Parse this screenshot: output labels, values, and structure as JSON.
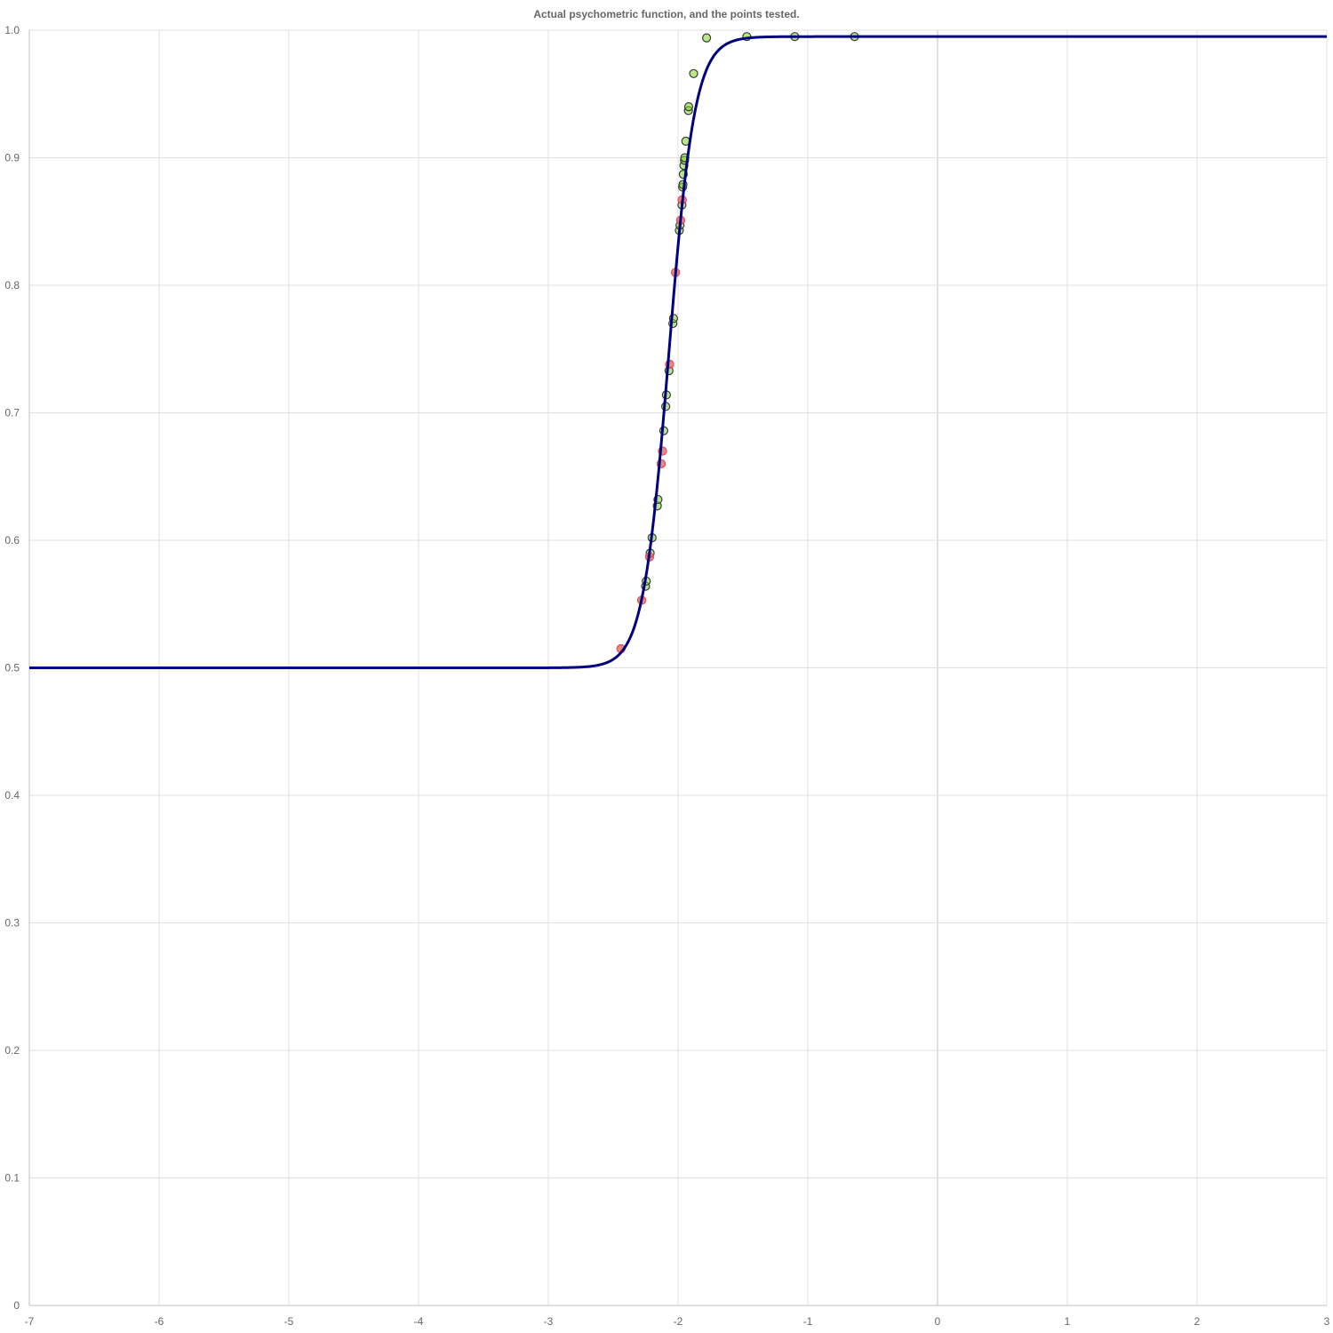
{
  "chart_data": {
    "type": "line",
    "title": "Actual psychometric function, and the points tested.",
    "xlabel": "",
    "ylabel": "",
    "xlim": [
      -7,
      3
    ],
    "ylim": [
      0,
      1
    ],
    "x_ticks": [
      "-7",
      "-6",
      "-5",
      "-4",
      "-3",
      "-2",
      "-1",
      "0",
      "1",
      "2",
      "3"
    ],
    "y_ticks": [
      "0",
      "0.1",
      "0.2",
      "0.3",
      "0.4",
      "0.5",
      "0.6",
      "0.7",
      "0.8",
      "0.9",
      "1.0"
    ],
    "grid": true,
    "legend": "none",
    "function": {
      "form": "logistic",
      "guess_rate": 0.5,
      "lapse_rate": 0.005,
      "threshold": -2.07,
      "slope": 10.0
    },
    "series": [
      {
        "kind": "points",
        "color": "#7ed321",
        "points": [
          [
            -2.44,
            0.515
          ],
          [
            -2.28,
            0.553
          ],
          [
            -2.25,
            0.564
          ],
          [
            -2.245,
            0.568
          ],
          [
            -2.22,
            0.587
          ],
          [
            -2.215,
            0.59
          ],
          [
            -2.2,
            0.602
          ],
          [
            -2.16,
            0.627
          ],
          [
            -2.155,
            0.632
          ],
          [
            -2.13,
            0.66
          ],
          [
            -2.12,
            0.67
          ],
          [
            -2.11,
            0.686
          ],
          [
            -2.095,
            0.705
          ],
          [
            -2.09,
            0.714
          ],
          [
            -2.07,
            0.733
          ],
          [
            -2.065,
            0.738
          ],
          [
            -2.04,
            0.77
          ],
          [
            -2.035,
            0.774
          ],
          [
            -2.02,
            0.81
          ],
          [
            -1.99,
            0.843
          ],
          [
            -1.985,
            0.847
          ],
          [
            -1.98,
            0.851
          ],
          [
            -1.97,
            0.863
          ],
          [
            -1.968,
            0.867
          ],
          [
            -1.965,
            0.877
          ],
          [
            -1.962,
            0.879
          ],
          [
            -1.96,
            0.887
          ],
          [
            -1.955,
            0.894
          ],
          [
            -1.95,
            0.898
          ],
          [
            -1.948,
            0.9
          ],
          [
            -1.94,
            0.913
          ],
          [
            -1.92,
            0.937
          ],
          [
            -1.918,
            0.94
          ],
          [
            -1.88,
            0.966
          ],
          [
            -1.78,
            0.994
          ],
          [
            -1.47,
            0.995
          ],
          [
            -1.1,
            0.995
          ],
          [
            -0.64,
            0.995
          ]
        ]
      },
      {
        "kind": "points",
        "color": "#ff4d6d",
        "points": [
          [
            -2.44,
            0.515
          ],
          [
            -2.28,
            0.553
          ],
          [
            -2.22,
            0.587
          ],
          [
            -2.13,
            0.66
          ],
          [
            -2.12,
            0.67
          ],
          [
            -2.065,
            0.738
          ],
          [
            -2.02,
            0.81
          ],
          [
            -1.98,
            0.851
          ],
          [
            -1.968,
            0.867
          ]
        ]
      }
    ],
    "curve_color": "#000080"
  }
}
